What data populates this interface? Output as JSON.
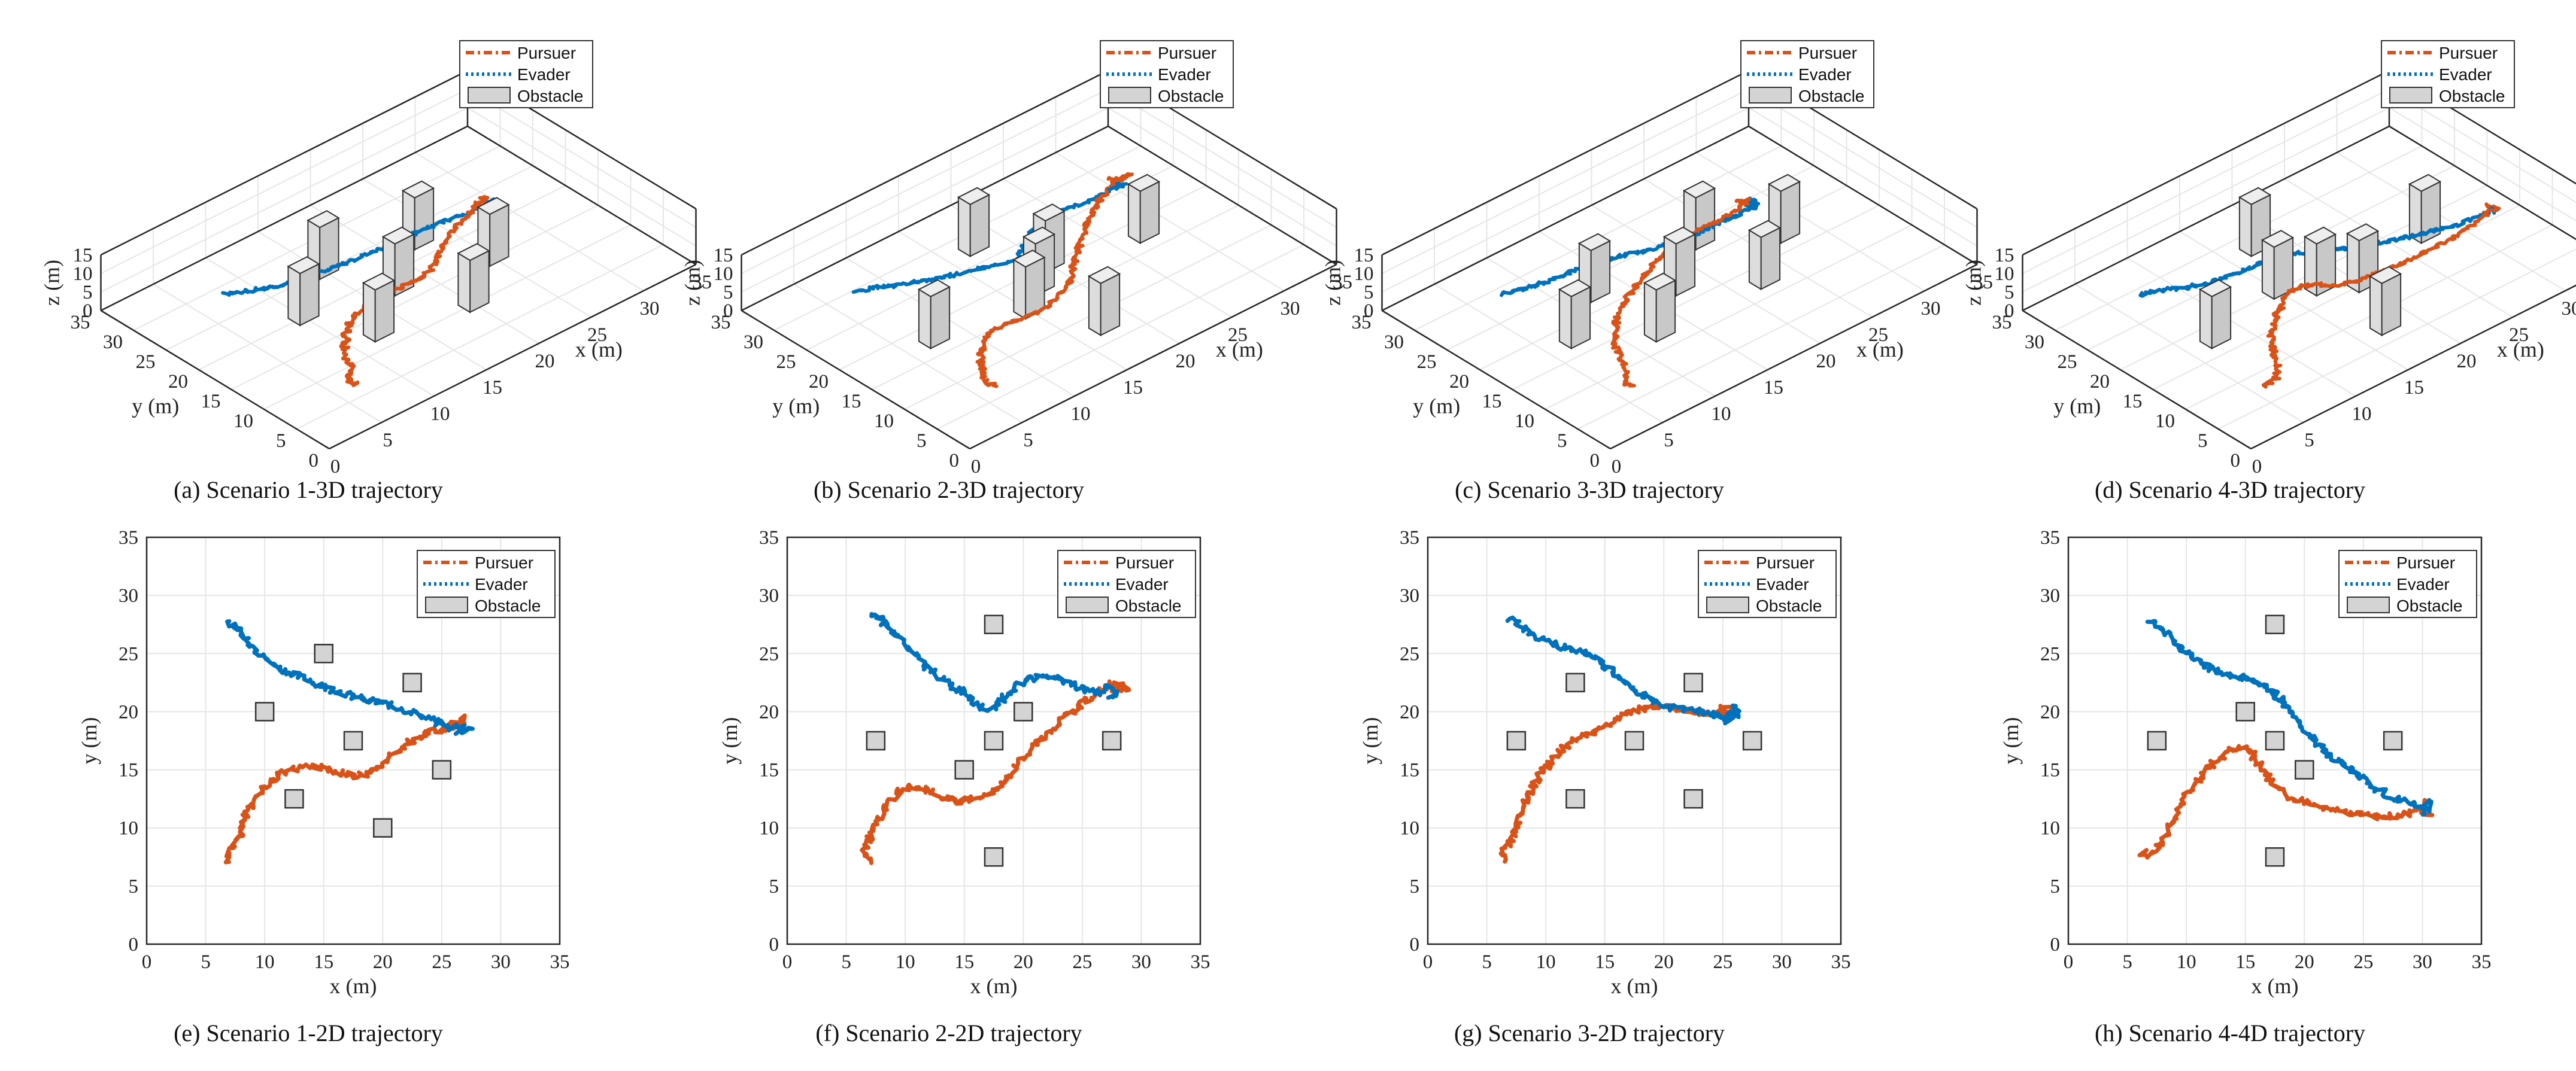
{
  "legend": {
    "pursuer": "Pursuer",
    "evader": "Evader",
    "obstacle": "Obstacle"
  },
  "colors": {
    "pursuer": "#d95319",
    "evader": "#0072bd",
    "obstacle_fill": "#d4d4d4",
    "obstacle_edge": "#333333",
    "grid": "#e6e6e6"
  },
  "axes": {
    "x_label": "x (m)",
    "y_label": "y (m)",
    "z_label": "z (m)",
    "xy_ticks": [
      0,
      5,
      10,
      15,
      20,
      25,
      30,
      35
    ],
    "z_ticks": [
      0,
      5,
      10,
      15
    ]
  },
  "captions": [
    "(a)  Scenario 1-3D trajectory",
    "(b)  Scenario 2-3D trajectory",
    "(c)  Scenario 3-3D trajectory",
    "(d)  Scenario 4-3D trajectory",
    "(e)  Scenario 1-2D trajectory",
    "(f)  Scenario 2-2D trajectory",
    "(g)  Scenario 3-2D trajectory",
    "(h)  Scenario 4-4D trajectory"
  ],
  "chart_data": [
    {
      "scenario": "1",
      "type": "scatter",
      "xlim": [
        0,
        35
      ],
      "ylim": [
        0,
        35
      ],
      "zlim": [
        0,
        15
      ],
      "obstacles": [
        [
          15,
          25
        ],
        [
          22.5,
          22.5
        ],
        [
          10,
          20
        ],
        [
          17.5,
          17.5
        ],
        [
          25,
          15
        ],
        [
          12.5,
          12.5
        ],
        [
          20,
          10
        ]
      ],
      "obstacle_height": 14,
      "series": [
        {
          "name": "Pursuer",
          "points": [
            [
              7,
              7
            ],
            [
              6.8,
              7.6
            ],
            [
              7.2,
              8.3
            ],
            [
              7.9,
              9.4
            ],
            [
              8.2,
              10.7
            ],
            [
              9,
              12
            ],
            [
              9.8,
              13.2
            ],
            [
              10.8,
              14.3
            ],
            [
              12,
              15
            ],
            [
              13.2,
              15.3
            ],
            [
              14.5,
              15.2
            ],
            [
              15.8,
              14.9
            ],
            [
              17,
              14.6
            ],
            [
              18.2,
              14.5
            ],
            [
              19.5,
              15
            ],
            [
              20.5,
              16
            ],
            [
              21.8,
              17
            ],
            [
              23,
              17.8
            ],
            [
              24.3,
              18.3
            ],
            [
              25.4,
              18.6
            ],
            [
              26.3,
              19
            ],
            [
              26.8,
              19.4
            ],
            [
              26.4,
              18.6
            ],
            [
              25.7,
              18.9
            ]
          ]
        },
        {
          "name": "Evader",
          "points": [
            [
              7,
              27.8
            ],
            [
              7.5,
              27.2
            ],
            [
              8.2,
              26.5
            ],
            [
              9,
              25.6
            ],
            [
              10,
              24.6
            ],
            [
              11.2,
              23.8
            ],
            [
              12.5,
              23.2
            ],
            [
              14,
              22.6
            ],
            [
              15.5,
              22
            ],
            [
              17,
              21.5
            ],
            [
              18.5,
              21
            ],
            [
              20,
              20.7
            ],
            [
              21.5,
              20.3
            ],
            [
              23,
              19.8
            ],
            [
              24.2,
              19.3
            ],
            [
              25,
              18.9
            ],
            [
              25.8,
              18.6
            ],
            [
              26.6,
              18.8
            ],
            [
              27.4,
              18.5
            ],
            [
              26.3,
              18.2
            ]
          ]
        }
      ]
    },
    {
      "scenario": "2",
      "type": "scatter",
      "xlim": [
        0,
        35
      ],
      "ylim": [
        0,
        35
      ],
      "zlim": [
        0,
        15
      ],
      "obstacles": [
        [
          17.5,
          27.5
        ],
        [
          7.5,
          17.5
        ],
        [
          15,
          15
        ],
        [
          17.5,
          17.5
        ],
        [
          20,
          20
        ],
        [
          27.5,
          17.5
        ],
        [
          17.5,
          7.5
        ]
      ],
      "obstacle_height": 14,
      "series": [
        {
          "name": "Pursuer",
          "points": [
            [
              7,
              7
            ],
            [
              6.5,
              8
            ],
            [
              7,
              9.2
            ],
            [
              7.6,
              10.6
            ],
            [
              8.5,
              12
            ],
            [
              9.6,
              13.2
            ],
            [
              10.8,
              13.6
            ],
            [
              12,
              13.2
            ],
            [
              13.2,
              12.6
            ],
            [
              14.5,
              12.3
            ],
            [
              16,
              12.6
            ],
            [
              17.5,
              13.2
            ],
            [
              18.8,
              14.5
            ],
            [
              20,
              16
            ],
            [
              21.2,
              17.3
            ],
            [
              22.5,
              18.5
            ],
            [
              23.8,
              19.8
            ],
            [
              25,
              20.8
            ],
            [
              26.2,
              21.5
            ],
            [
              27.3,
              22.2
            ],
            [
              28.3,
              22.4
            ],
            [
              29,
              22
            ],
            [
              27.8,
              21.8
            ],
            [
              27.3,
              22.6
            ]
          ]
        },
        {
          "name": "Evader",
          "points": [
            [
              7,
              28.5
            ],
            [
              7.8,
              28
            ],
            [
              8.8,
              27
            ],
            [
              9.8,
              25.8
            ],
            [
              11,
              24.6
            ],
            [
              12.3,
              23.5
            ],
            [
              13.8,
              22.4
            ],
            [
              15.2,
              21.4
            ],
            [
              16.5,
              20.4
            ],
            [
              17.3,
              20.2
            ],
            [
              18.2,
              21
            ],
            [
              19.2,
              22
            ],
            [
              20.5,
              22.8
            ],
            [
              21.8,
              23
            ],
            [
              23,
              22.9
            ],
            [
              24.2,
              22.3
            ],
            [
              25.5,
              21.8
            ],
            [
              26.5,
              21.7
            ],
            [
              27.5,
              22.2
            ],
            [
              28,
              21.5
            ],
            [
              27.2,
              21.2
            ]
          ]
        }
      ]
    },
    {
      "scenario": "3",
      "type": "scatter",
      "xlim": [
        0,
        35
      ],
      "ylim": [
        0,
        35
      ],
      "zlim": [
        0,
        15
      ],
      "obstacles": [
        [
          12.5,
          22.5
        ],
        [
          22.5,
          22.5
        ],
        [
          7.5,
          17.5
        ],
        [
          17.5,
          17.5
        ],
        [
          27.5,
          17.5
        ],
        [
          12.5,
          12.5
        ],
        [
          22.5,
          12.5
        ]
      ],
      "obstacle_height": 14,
      "series": [
        {
          "name": "Pursuer",
          "points": [
            [
              6.8,
              7.2
            ],
            [
              6.3,
              7.8
            ],
            [
              7,
              8.8
            ],
            [
              7.6,
              10.4
            ],
            [
              8.2,
              12.2
            ],
            [
              9,
              13.6
            ],
            [
              9.8,
              15
            ],
            [
              10.8,
              16.2
            ],
            [
              12,
              17.2
            ],
            [
              13.2,
              18
            ],
            [
              14.5,
              18.5
            ],
            [
              15.8,
              19.2
            ],
            [
              17,
              19.9
            ],
            [
              18.2,
              20.3
            ],
            [
              19.5,
              20.5
            ],
            [
              21,
              20.3
            ],
            [
              22.5,
              20
            ],
            [
              23.8,
              19.8
            ],
            [
              24.8,
              19.9
            ],
            [
              25.6,
              20.3
            ],
            [
              25.2,
              19.4
            ],
            [
              24.8,
              20.5
            ]
          ]
        },
        {
          "name": "Evader",
          "points": [
            [
              7,
              28
            ],
            [
              7.8,
              27.5
            ],
            [
              8.8,
              26.7
            ],
            [
              10,
              26.1
            ],
            [
              11.3,
              25.6
            ],
            [
              12.6,
              25.2
            ],
            [
              13.8,
              24.8
            ],
            [
              15,
              24
            ],
            [
              16.2,
              23
            ],
            [
              17.4,
              22
            ],
            [
              18.6,
              21.2
            ],
            [
              19.8,
              20.6
            ],
            [
              21,
              20.3
            ],
            [
              22.3,
              20.1
            ],
            [
              23.5,
              19.9
            ],
            [
              24.6,
              19.6
            ],
            [
              25.5,
              19.3
            ],
            [
              26.4,
              20
            ],
            [
              26,
              20.4
            ],
            [
              25.2,
              19
            ]
          ]
        }
      ]
    },
    {
      "scenario": "4",
      "type": "scatter",
      "xlim": [
        0,
        35
      ],
      "ylim": [
        0,
        35
      ],
      "zlim": [
        0,
        15
      ],
      "obstacles": [
        [
          17.5,
          27.5
        ],
        [
          7.5,
          17.5
        ],
        [
          15,
          20
        ],
        [
          17.5,
          17.5
        ],
        [
          20,
          15
        ],
        [
          27.5,
          17.5
        ],
        [
          17.5,
          7.5
        ]
      ],
      "obstacle_height": 14,
      "series": [
        {
          "name": "Pursuer",
          "points": [
            [
              6.5,
              8
            ],
            [
              6.2,
              7.6
            ],
            [
              7.2,
              7.8
            ],
            [
              8,
              8.8
            ],
            [
              8.7,
              10.4
            ],
            [
              9.5,
              12
            ],
            [
              10.5,
              13.6
            ],
            [
              11.7,
              15
            ],
            [
              13,
              16.2
            ],
            [
              14.2,
              17
            ],
            [
              15.2,
              16.8
            ],
            [
              16.2,
              15.5
            ],
            [
              17.2,
              13.8
            ],
            [
              18.5,
              12.8
            ],
            [
              20,
              12.2
            ],
            [
              21.5,
              11.8
            ],
            [
              23,
              11.4
            ],
            [
              24.5,
              11.2
            ],
            [
              26,
              11
            ],
            [
              27.5,
              11
            ],
            [
              28.8,
              11.2
            ],
            [
              29.8,
              11.6
            ],
            [
              30.6,
              11.2
            ],
            [
              30.2,
              12.4
            ]
          ]
        },
        {
          "name": "Evader",
          "points": [
            [
              6.8,
              28
            ],
            [
              7.5,
              27.6
            ],
            [
              8.6,
              26.5
            ],
            [
              9.8,
              25.2
            ],
            [
              11.1,
              24.2
            ],
            [
              12.5,
              23.5
            ],
            [
              14,
              23.1
            ],
            [
              15.5,
              22.8
            ],
            [
              16.8,
              22.2
            ],
            [
              18,
              21
            ],
            [
              19.2,
              19.5
            ],
            [
              20.4,
              18
            ],
            [
              21.6,
              16.7
            ],
            [
              22.8,
              15.8
            ],
            [
              24,
              15
            ],
            [
              25.2,
              14
            ],
            [
              26.4,
              13.2
            ],
            [
              27.6,
              12.6
            ],
            [
              28.8,
              12.2
            ],
            [
              29.8,
              11.8
            ],
            [
              30.6,
              12.3
            ],
            [
              30.2,
              11.2
            ]
          ]
        }
      ]
    }
  ]
}
